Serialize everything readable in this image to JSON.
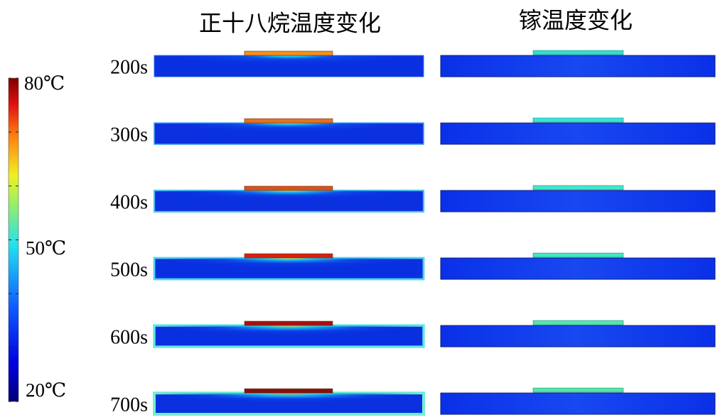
{
  "titles": [
    "正十八烷温度变化",
    "镓温度变化"
  ],
  "rows": [
    "200s",
    "300s",
    "400s",
    "500s",
    "600s",
    "700s"
  ],
  "colorbar": {
    "labels": [
      "80℃",
      "50℃",
      "20℃"
    ]
  }
}
